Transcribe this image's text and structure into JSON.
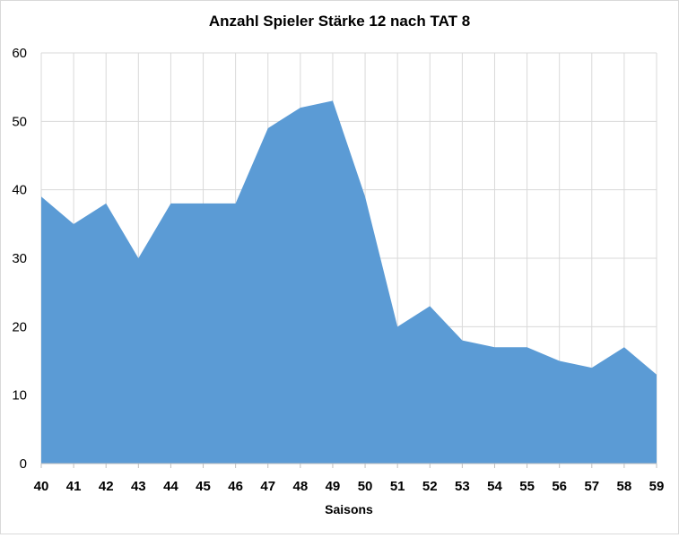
{
  "chart_data": {
    "type": "area",
    "title": "Anzahl Spieler Stärke 12 nach TAT 8",
    "xlabel": "Saisons",
    "ylabel": "",
    "categories": [
      "40",
      "41",
      "42",
      "43",
      "44",
      "45",
      "46",
      "47",
      "48",
      "49",
      "50",
      "51",
      "52",
      "53",
      "54",
      "55",
      "56",
      "57",
      "58",
      "59"
    ],
    "values": [
      39,
      35,
      38,
      30,
      38,
      38,
      38,
      49,
      52,
      53,
      39,
      20,
      23,
      18,
      17,
      17,
      15,
      14,
      17,
      13
    ],
    "ylim": [
      0,
      60
    ],
    "yticks": [
      0,
      10,
      20,
      30,
      40,
      50,
      60
    ],
    "grid": true,
    "legend": "none",
    "colors": {
      "fill": "#5b9bd5",
      "grid": "#d9d9d9",
      "axis": "#bfbfbf"
    }
  }
}
